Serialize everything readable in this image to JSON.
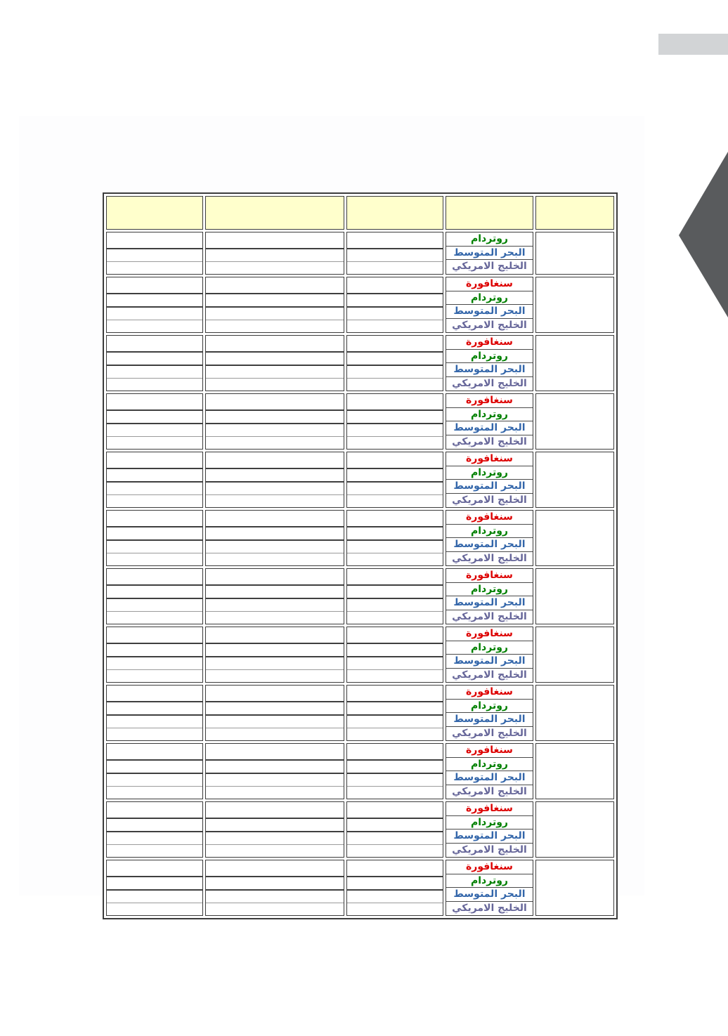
{
  "page": {
    "background": "#ffffff"
  },
  "decorations": {
    "top_right_bar": {
      "color": "#d2d4d6"
    },
    "side_arrow": {
      "color": "#595b5d",
      "direction": "left"
    }
  },
  "table": {
    "border_color": "#3c3c3c",
    "header": {
      "background": "#ffffcc",
      "cells": [
        "",
        "",
        "",
        "",
        ""
      ]
    },
    "labels": {
      "singapore": {
        "text": "سنغافورة",
        "color": "#dd0000"
      },
      "rotterdam": {
        "text": "روتردام",
        "color": "#008000"
      },
      "mediterranean": {
        "text": "البحر المتوسط",
        "color": "#3366aa"
      },
      "american_gulf": {
        "text": "الخليج الامريكي",
        "color": "#666699"
      }
    },
    "groups": [
      {
        "id": "group-1",
        "rows": [
          "rotterdam",
          "mediterranean",
          "american_gulf"
        ]
      },
      {
        "id": "group-2",
        "rows": [
          "singapore",
          "rotterdam",
          "mediterranean",
          "american_gulf"
        ]
      },
      {
        "id": "group-3",
        "rows": [
          "singapore",
          "rotterdam",
          "mediterranean",
          "american_gulf"
        ]
      },
      {
        "id": "group-4",
        "rows": [
          "singapore",
          "rotterdam",
          "mediterranean",
          "american_gulf"
        ]
      },
      {
        "id": "group-5",
        "rows": [
          "singapore",
          "rotterdam",
          "mediterranean",
          "american_gulf"
        ]
      },
      {
        "id": "group-6",
        "rows": [
          "singapore",
          "rotterdam",
          "mediterranean",
          "american_gulf"
        ]
      },
      {
        "id": "group-7",
        "rows": [
          "singapore",
          "rotterdam",
          "mediterranean",
          "american_gulf"
        ]
      },
      {
        "id": "group-8",
        "rows": [
          "singapore",
          "rotterdam",
          "mediterranean",
          "american_gulf"
        ]
      },
      {
        "id": "group-9",
        "rows": [
          "singapore",
          "rotterdam",
          "mediterranean",
          "american_gulf"
        ]
      },
      {
        "id": "group-10",
        "rows": [
          "singapore",
          "rotterdam",
          "mediterranean",
          "american_gulf"
        ]
      },
      {
        "id": "group-11",
        "rows": [
          "singapore",
          "rotterdam",
          "mediterranean",
          "american_gulf"
        ]
      },
      {
        "id": "group-12",
        "rows": [
          "singapore",
          "rotterdam",
          "mediterranean",
          "american_gulf"
        ]
      }
    ]
  }
}
